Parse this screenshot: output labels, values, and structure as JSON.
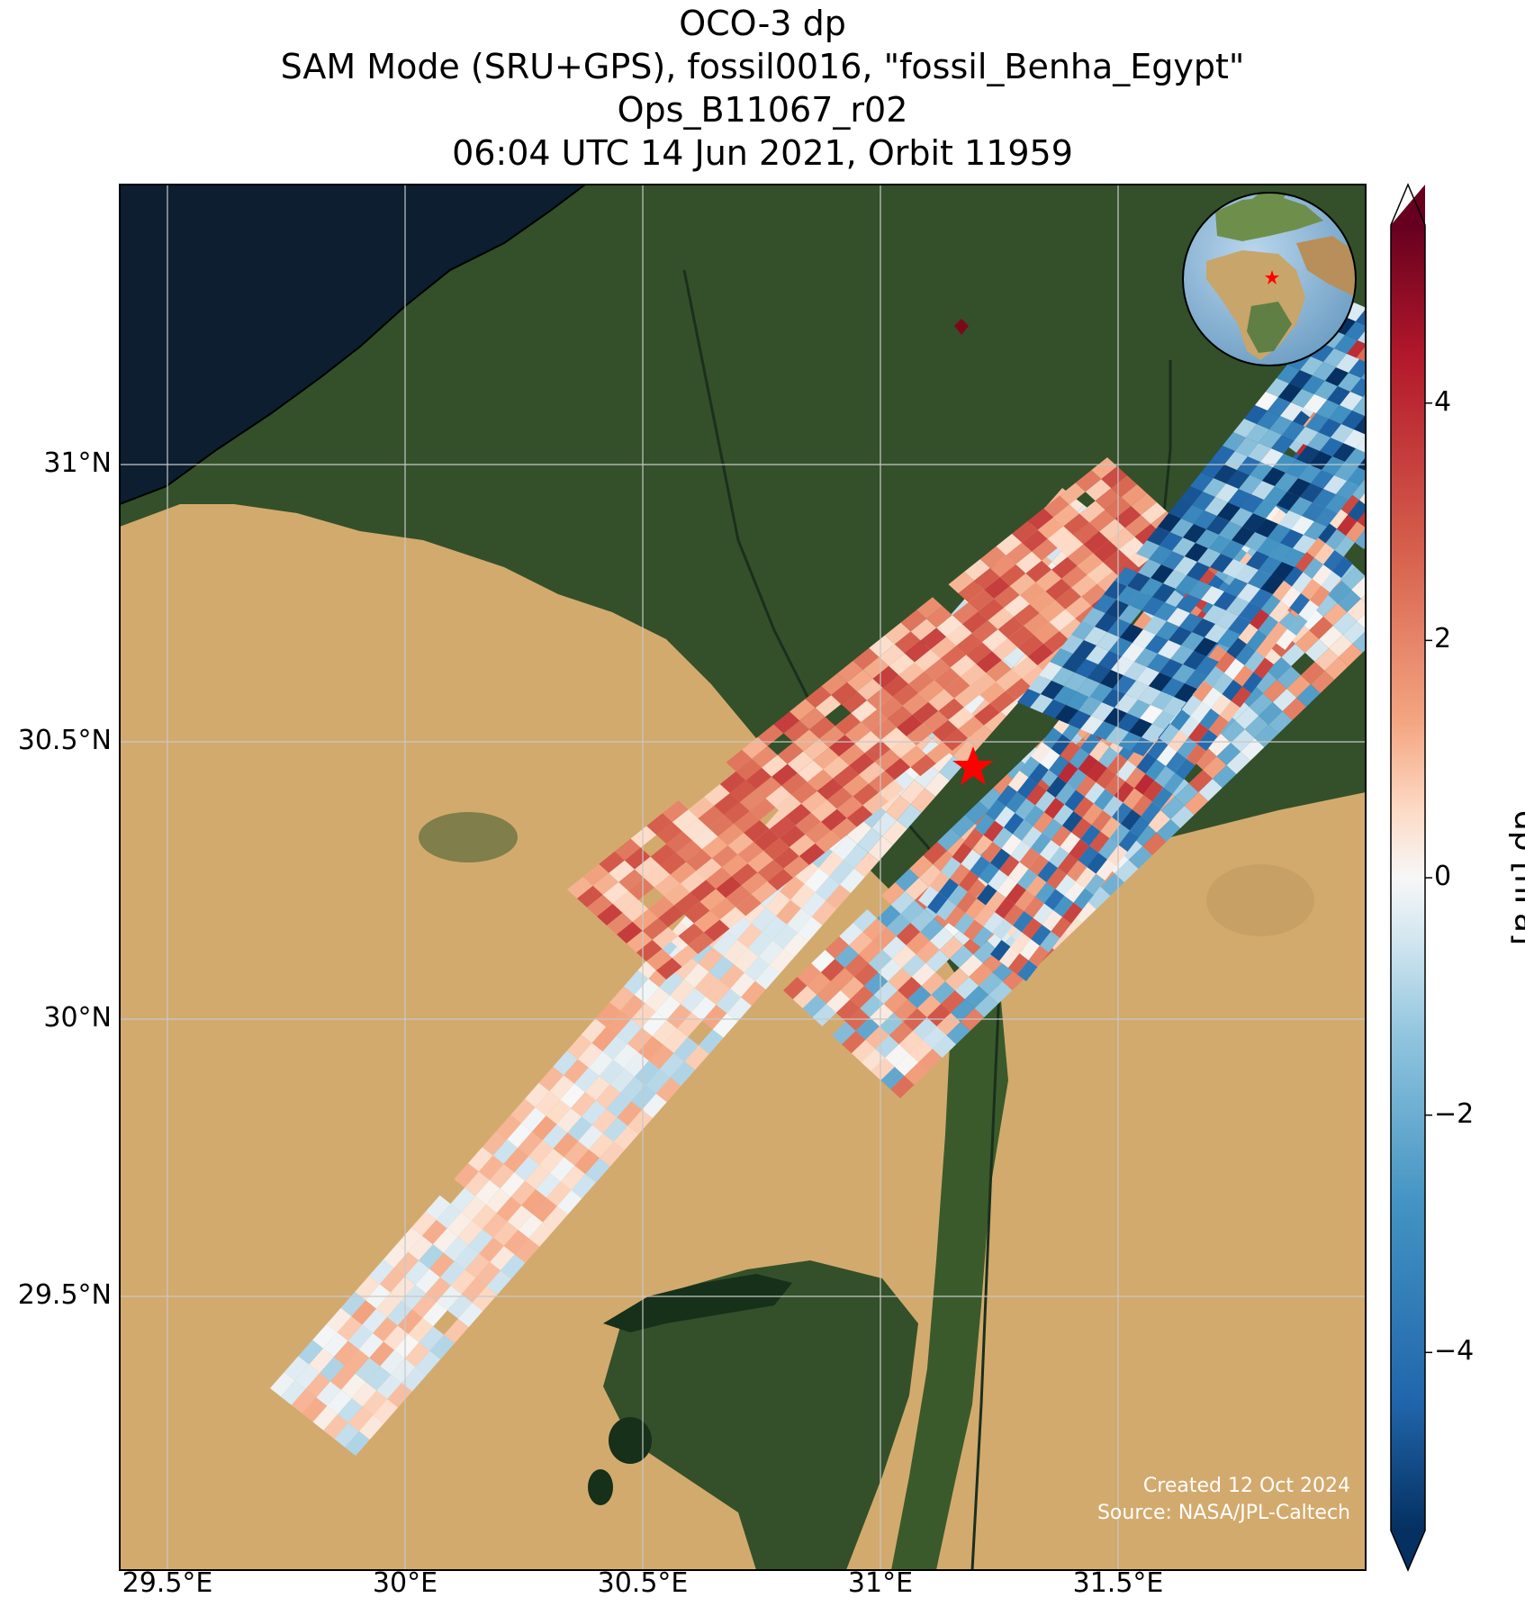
{
  "title": {
    "line1": "OCO-3 dp",
    "line2": "SAM Mode (SRU+GPS), fossil0016, \"fossil_Benha_Egypt\"",
    "line3": "Ops_B11067_r02",
    "line4": "06:04 UTC 14 Jun 2021, Orbit 11959"
  },
  "map": {
    "lon_ticks": [
      {
        "value": 29.5,
        "label": "29.5°E"
      },
      {
        "value": 30.0,
        "label": "30°E"
      },
      {
        "value": 30.5,
        "label": "30.5°E"
      },
      {
        "value": 31.0,
        "label": "31°E"
      },
      {
        "value": 31.5,
        "label": "31.5°E"
      }
    ],
    "lat_ticks": [
      {
        "value": 31.0,
        "label": "31°N"
      },
      {
        "value": 30.5,
        "label": "30.5°N"
      },
      {
        "value": 30.0,
        "label": "30°N"
      },
      {
        "value": 29.5,
        "label": "29.5°N"
      }
    ],
    "target_marker": "red-star",
    "inset_globe": "globe-locator",
    "colors": {
      "sea": "#0c1e30",
      "desert": "#d3aa6d",
      "vegetation": "#33502a",
      "target": "#ff0000"
    }
  },
  "colorbar": {
    "label": "dp [hPa]",
    "range": [
      -5.5,
      5.5
    ],
    "colormap": "RdBu_r",
    "ticks": [
      {
        "value": 4,
        "label": "4"
      },
      {
        "value": 2,
        "label": "2"
      },
      {
        "value": 0,
        "label": "0"
      },
      {
        "value": -2,
        "label": "−2"
      },
      {
        "value": -4,
        "label": "−4"
      }
    ]
  },
  "credits": {
    "created": "Created 12 Oct 2024",
    "source": "Source: NASA/JPL-Caltech"
  }
}
